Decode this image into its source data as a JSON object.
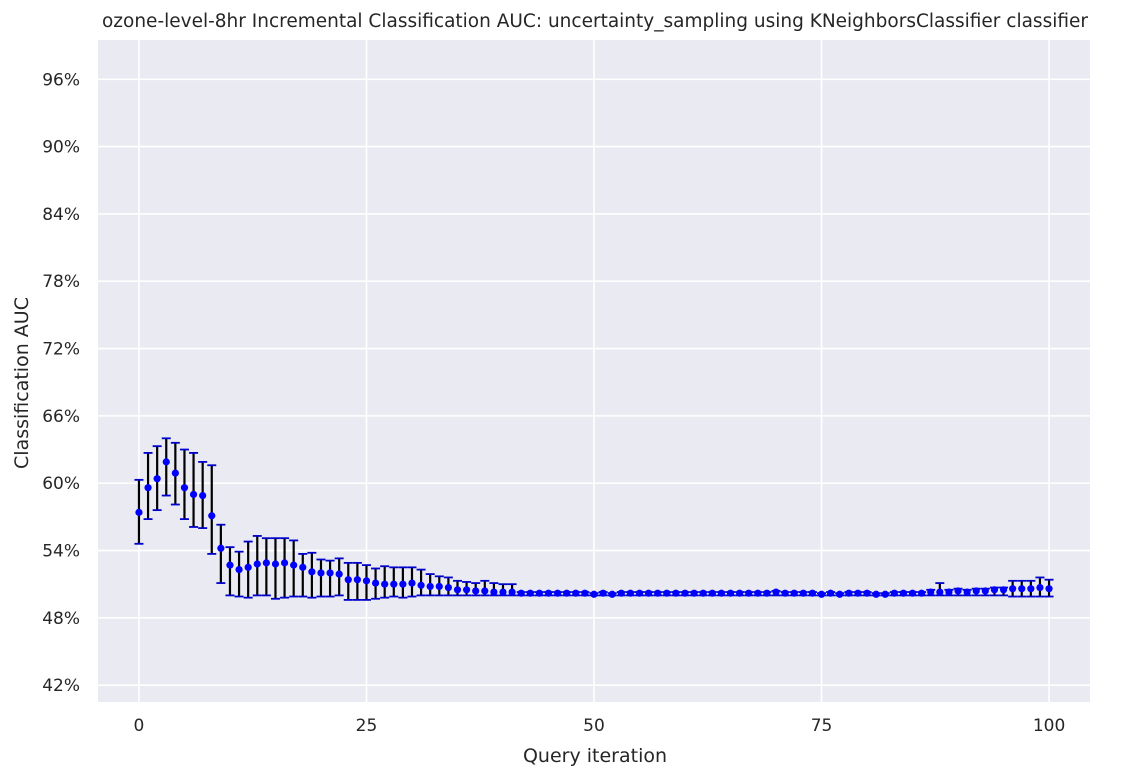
{
  "chart_data": {
    "type": "scatter",
    "title": "ozone-level-8hr Incremental Classification AUC: uncertainty_sampling using KNeighborsClassifier classifier",
    "xlabel": "Query iteration",
    "ylabel": "Classification AUC",
    "xlim": [
      -4.5,
      104.5
    ],
    "ylim": [
      40.5,
      99.5
    ],
    "xticks": [
      0,
      25,
      50,
      75,
      100
    ],
    "xtick_labels": [
      "0",
      "25",
      "50",
      "75",
      "100"
    ],
    "yticks": [
      42,
      48,
      54,
      60,
      66,
      72,
      78,
      84,
      90,
      96
    ],
    "ytick_labels": [
      "42%",
      "48%",
      "54%",
      "60%",
      "66%",
      "72%",
      "78%",
      "84%",
      "90%",
      "96%"
    ],
    "grid": true,
    "series": [
      {
        "marker_color": "#0000ff",
        "errorbar_color": "#000000",
        "cap_color": "#0000cc",
        "x": [
          0,
          1,
          2,
          3,
          4,
          5,
          6,
          7,
          8,
          9,
          10,
          11,
          12,
          13,
          14,
          15,
          16,
          17,
          18,
          19,
          20,
          21,
          22,
          23,
          24,
          25,
          26,
          27,
          28,
          29,
          30,
          31,
          32,
          33,
          34,
          35,
          36,
          37,
          38,
          39,
          40,
          41,
          42,
          43,
          44,
          45,
          46,
          47,
          48,
          49,
          50,
          51,
          52,
          53,
          54,
          55,
          56,
          57,
          58,
          59,
          60,
          61,
          62,
          63,
          64,
          65,
          66,
          67,
          68,
          69,
          70,
          71,
          72,
          73,
          74,
          75,
          76,
          77,
          78,
          79,
          80,
          81,
          82,
          83,
          84,
          85,
          86,
          87,
          88,
          89,
          90,
          91,
          92,
          93,
          94,
          95,
          96,
          97,
          98,
          99,
          100
        ],
        "y": [
          57.4,
          59.6,
          60.4,
          61.9,
          60.9,
          59.6,
          59.0,
          58.9,
          57.1,
          54.2,
          52.7,
          52.3,
          52.5,
          52.8,
          52.9,
          52.8,
          52.9,
          52.7,
          52.5,
          52.1,
          52.0,
          52.0,
          51.9,
          51.4,
          51.4,
          51.3,
          51.1,
          51.0,
          51.0,
          51.0,
          51.1,
          50.9,
          50.8,
          50.8,
          50.7,
          50.5,
          50.5,
          50.4,
          50.4,
          50.3,
          50.3,
          50.3,
          50.2,
          50.2,
          50.2,
          50.2,
          50.2,
          50.2,
          50.2,
          50.2,
          50.1,
          50.2,
          50.1,
          50.2,
          50.2,
          50.2,
          50.2,
          50.2,
          50.2,
          50.2,
          50.2,
          50.2,
          50.2,
          50.2,
          50.2,
          50.2,
          50.2,
          50.2,
          50.2,
          50.2,
          50.3,
          50.2,
          50.2,
          50.2,
          50.2,
          50.1,
          50.2,
          50.1,
          50.2,
          50.2,
          50.2,
          50.1,
          50.1,
          50.2,
          50.2,
          50.2,
          50.2,
          50.3,
          50.3,
          50.3,
          50.4,
          50.3,
          50.4,
          50.4,
          50.5,
          50.5,
          50.6,
          50.6,
          50.6,
          50.7,
          50.6
        ],
        "err_low": [
          54.6,
          56.8,
          57.6,
          58.9,
          58.1,
          56.8,
          56.1,
          56.0,
          53.7,
          51.1,
          50.0,
          49.9,
          49.8,
          50.0,
          50.0,
          49.7,
          49.8,
          49.9,
          49.9,
          49.8,
          49.9,
          49.9,
          50.0,
          49.6,
          49.6,
          49.6,
          49.7,
          49.8,
          49.9,
          49.8,
          49.9,
          50.0,
          50.0,
          50.0,
          50.0,
          50.0,
          50.0,
          50.0,
          50.0,
          50.0,
          50.0,
          50.0,
          50.0,
          50.0,
          50.0,
          50.0,
          50.0,
          50.0,
          50.0,
          50.0,
          50.0,
          50.0,
          50.0,
          50.0,
          50.0,
          50.0,
          50.0,
          50.0,
          50.0,
          50.0,
          50.0,
          50.0,
          50.0,
          50.0,
          50.0,
          50.0,
          50.0,
          50.0,
          50.0,
          50.0,
          50.0,
          50.0,
          50.0,
          50.0,
          50.0,
          50.0,
          50.0,
          50.0,
          50.0,
          50.0,
          50.0,
          50.0,
          50.0,
          50.0,
          50.0,
          50.0,
          50.0,
          50.0,
          50.0,
          50.0,
          50.0,
          50.0,
          50.0,
          50.0,
          50.0,
          50.0,
          49.9,
          49.9,
          49.9,
          49.9,
          49.9
        ],
        "err_high": [
          60.3,
          62.7,
          63.3,
          64.0,
          63.6,
          63.0,
          62.7,
          61.9,
          61.6,
          56.3,
          54.3,
          53.9,
          54.8,
          55.3,
          55.1,
          55.1,
          55.1,
          54.9,
          53.7,
          53.8,
          53.2,
          53.1,
          53.3,
          52.9,
          52.9,
          52.7,
          52.4,
          52.6,
          52.5,
          52.5,
          52.5,
          52.3,
          51.9,
          51.7,
          51.6,
          51.3,
          51.2,
          51.1,
          51.3,
          51.1,
          51.0,
          51.0,
          50.3,
          50.3,
          50.3,
          50.3,
          50.3,
          50.3,
          50.3,
          50.3,
          50.2,
          50.3,
          50.2,
          50.3,
          50.3,
          50.3,
          50.3,
          50.3,
          50.3,
          50.3,
          50.3,
          50.3,
          50.3,
          50.3,
          50.3,
          50.3,
          50.3,
          50.3,
          50.3,
          50.3,
          50.4,
          50.3,
          50.3,
          50.3,
          50.3,
          50.2,
          50.3,
          50.2,
          50.3,
          50.3,
          50.3,
          50.2,
          50.2,
          50.3,
          50.3,
          50.3,
          50.3,
          50.5,
          51.1,
          50.5,
          50.6,
          50.5,
          50.6,
          50.6,
          50.7,
          50.7,
          51.3,
          51.3,
          51.3,
          51.6,
          51.4
        ]
      }
    ]
  }
}
